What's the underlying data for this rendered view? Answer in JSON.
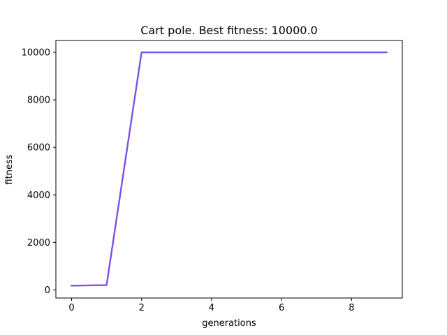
{
  "chart_data": {
    "type": "line",
    "title": "Cart pole. Best fitness: 10000.0",
    "xlabel": "generations",
    "ylabel": "fitness",
    "xlim": [
      -0.45,
      9.45
    ],
    "ylim": [
      -340,
      10500
    ],
    "x_ticks": [
      0,
      2,
      4,
      6,
      8
    ],
    "y_ticks": [
      0,
      2000,
      4000,
      6000,
      8000,
      10000
    ],
    "grid": false,
    "series": [
      {
        "color": "#7b52e8",
        "x": [
          0,
          1,
          2,
          3,
          4,
          5,
          6,
          7,
          8,
          9
        ],
        "y": [
          180,
          200,
          10000,
          10000,
          10000,
          10000,
          10000,
          10000,
          10000,
          10000
        ]
      }
    ]
  }
}
